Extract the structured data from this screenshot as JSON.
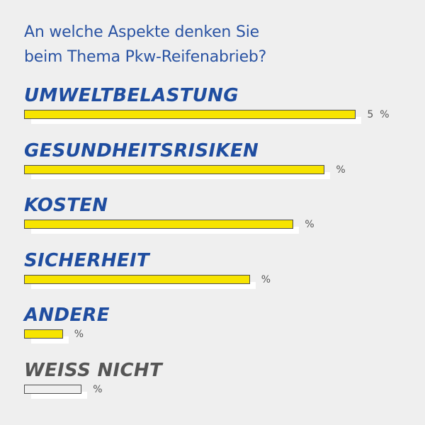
{
  "title_lines": [
    "An welche Aspekte denken Sie",
    "beim Thema Pkw-Reifenabrieb?"
  ],
  "colors": {
    "title": "#2a53a3",
    "label_blue": "#1f4da0",
    "label_gray": "#555555",
    "bar_fill": "#f7e400",
    "bar_empty": "#efefef",
    "shadow": "#ffffff"
  },
  "chart_data": {
    "type": "bar",
    "orientation": "horizontal",
    "title": "An welche Aspekte denken Sie beim Thema Pkw-Reifenabrieb?",
    "categories": [
      "UMWELTBELASTUNG",
      "GESUNDHEITSRISIKEN",
      "KOSTEN",
      "SICHERHEIT",
      "ANDERE",
      "WEISS NICHT"
    ],
    "values": [
      53,
      48,
      43,
      36,
      6,
      9
    ],
    "value_labels": [
      "5  %",
      "%",
      "%",
      "%",
      "%",
      "%"
    ],
    "unit": "%",
    "xlim": [
      0,
      60
    ],
    "label_colors": [
      "label_blue",
      "label_blue",
      "label_blue",
      "label_blue",
      "label_blue",
      "label_gray"
    ],
    "bar_styles": [
      "filled",
      "filled",
      "filled",
      "filled",
      "filled",
      "empty"
    ]
  }
}
